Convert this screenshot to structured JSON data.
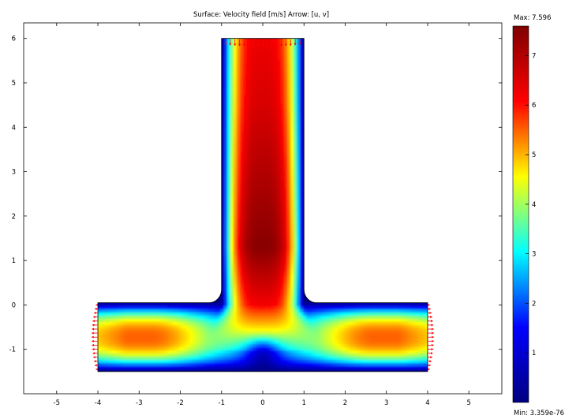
{
  "chart_data": {
    "type": "heatmap",
    "title": "Surface: Velocity field [m/s]   Arrow: [u, v]",
    "xlabel": "",
    "ylabel": "",
    "xlim": [
      -5.8,
      5.8
    ],
    "ylim": [
      -2.0,
      6.35
    ],
    "x_ticks": [
      -5,
      -4,
      -3,
      -2,
      -1,
      0,
      1,
      2,
      3,
      4,
      5
    ],
    "y_ticks": [
      -1,
      0,
      1,
      2,
      3,
      4,
      5,
      6
    ],
    "grid": false,
    "colormap": [
      "#00007f",
      "#0000ff",
      "#00ffff",
      "#ffff00",
      "#ff0000",
      "#7f0000"
    ],
    "colorbar": {
      "min_label": "Min: 3.359e-76",
      "max_label": "Max: 7.596",
      "min": 0,
      "max": 7.596,
      "ticks": [
        1,
        2,
        3,
        4,
        5,
        6,
        7
      ]
    },
    "geometry": {
      "vertical_channel": {
        "x": [
          -1,
          1
        ],
        "y": [
          0.05,
          6
        ]
      },
      "horizontal_channel": {
        "x": [
          -4,
          4
        ],
        "y": [
          -1.5,
          0.05
        ]
      },
      "fillet_radius": 0.3
    },
    "field": {
      "vertical_channel_peak": 7.5,
      "vertical_channel_peak_y": 1.3,
      "inlet_value": 6.3,
      "branch_peak": 5.5,
      "branch_peak_x": 2.7,
      "branch_peak_y": -1.0
    },
    "arrows": {
      "color": "#ff0000",
      "inlet": {
        "y": 6,
        "x_range": [
          -0.9,
          0.9
        ],
        "count": 17,
        "direction": "down"
      },
      "outlet_left": {
        "x": -4,
        "y_range": [
          -1.45,
          0.0
        ],
        "count": 17,
        "direction": "left"
      },
      "outlet_right": {
        "x": 4,
        "y_range": [
          -1.45,
          0.0
        ],
        "count": 17,
        "direction": "right"
      }
    }
  }
}
